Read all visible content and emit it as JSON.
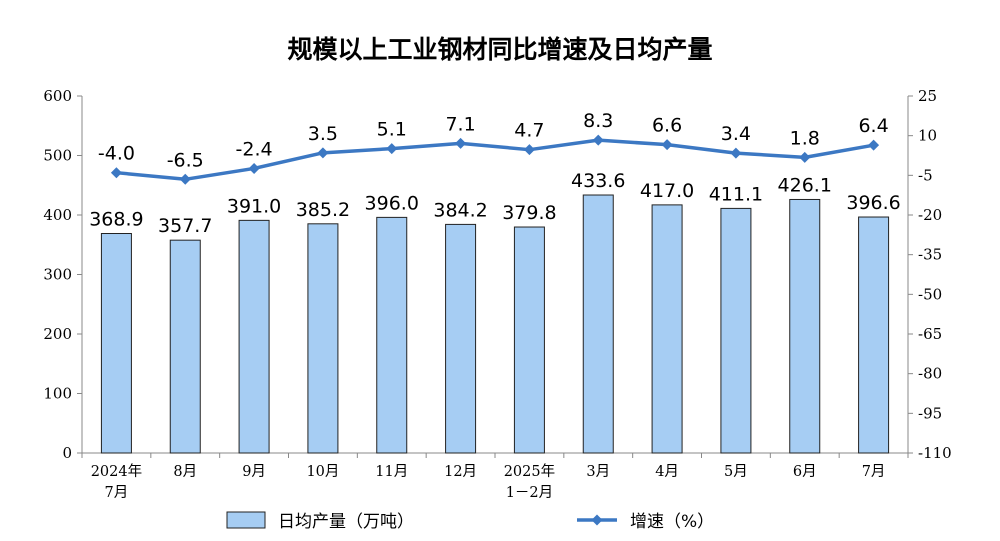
{
  "chart_data": {
    "type": "bar",
    "title": "规模以上工业钢材同比增速及日均产量",
    "categories": [
      [
        "2024年",
        "7月"
      ],
      [
        "8月"
      ],
      [
        "9月"
      ],
      [
        "10月"
      ],
      [
        "11月"
      ],
      [
        "12月"
      ],
      [
        "2025年",
        "1－2月"
      ],
      [
        "3月"
      ],
      [
        "4月"
      ],
      [
        "5月"
      ],
      [
        "6月"
      ],
      [
        "7月"
      ]
    ],
    "series": [
      {
        "name": "日均产量（万吨）",
        "type": "bar",
        "axis": "left",
        "color": "#a6cdf3",
        "values": [
          368.9,
          357.7,
          391.0,
          385.2,
          396.0,
          384.2,
          379.8,
          433.6,
          417.0,
          411.1,
          426.1,
          396.6
        ],
        "labels": [
          "368.9",
          "357.7",
          "391.0",
          "385.2",
          "396.0",
          "384.2",
          "379.8",
          "433.6",
          "417.0",
          "411.1",
          "426.1",
          "396.6"
        ]
      },
      {
        "name": "增速（%）",
        "type": "line",
        "axis": "right",
        "color": "#3c78c3",
        "values": [
          -4.0,
          -6.5,
          -2.4,
          3.5,
          5.1,
          7.1,
          4.7,
          8.3,
          6.6,
          3.4,
          1.8,
          6.4
        ],
        "labels": [
          "-4.0",
          "-6.5",
          "-2.4",
          "3.5",
          "5.1",
          "7.1",
          "4.7",
          "8.3",
          "6.6",
          "3.4",
          "1.8",
          "6.4"
        ]
      }
    ],
    "y_left": {
      "min": 0,
      "max": 600,
      "ticks": [
        0,
        100,
        200,
        300,
        400,
        500,
        600
      ]
    },
    "y_right": {
      "min": -110,
      "max": 25,
      "ticks": [
        25,
        10,
        -5,
        -20,
        -35,
        -50,
        -65,
        -80,
        -95,
        -110
      ]
    },
    "grid": false,
    "legend": "bottom"
  }
}
